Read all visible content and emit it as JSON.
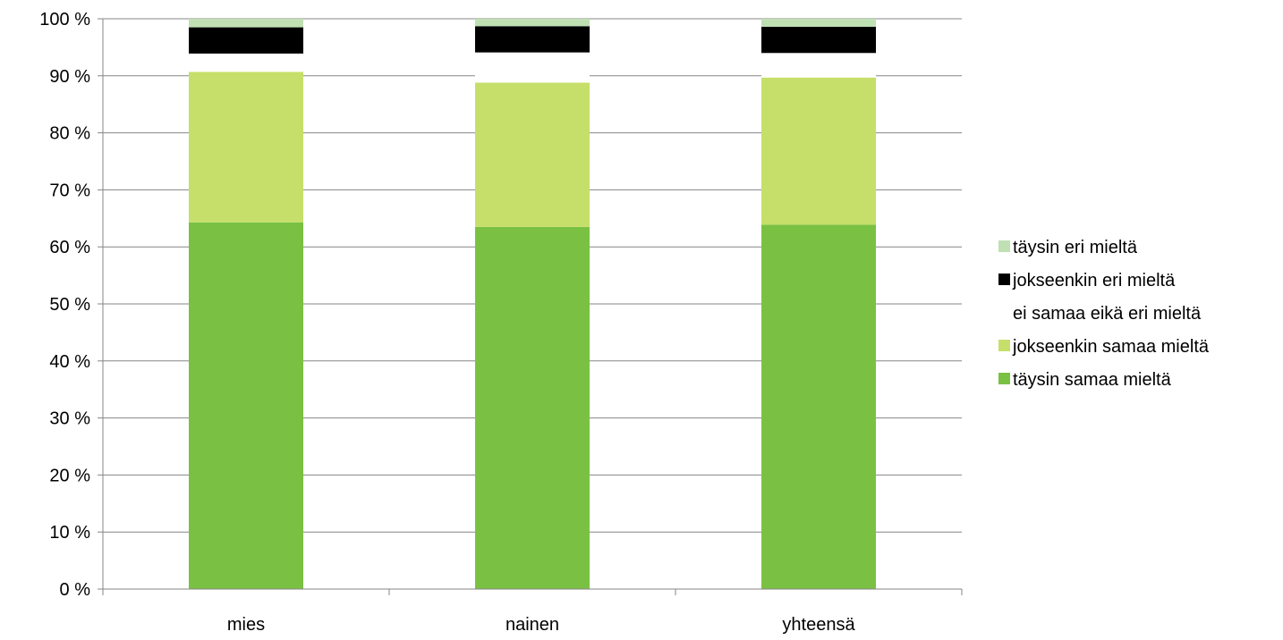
{
  "chart_data": {
    "type": "bar",
    "stacked": true,
    "percent": true,
    "categories": [
      "mies",
      "nainen",
      "yhteensä"
    ],
    "series": [
      {
        "name": "täysin samaa mieltä",
        "color": "#7ac143",
        "values": [
          64.3,
          63.5,
          63.9
        ]
      },
      {
        "name": "jokseenkin samaa mieltä",
        "color": "#c6df6a",
        "values": [
          26.4,
          25.3,
          25.8
        ]
      },
      {
        "name": "ei samaa eikä eri mieltä",
        "color": "#ffffff",
        "values": [
          3.2,
          5.3,
          4.3
        ]
      },
      {
        "name": "jokseenkin eri mieltä",
        "color": "#000000",
        "values": [
          4.6,
          4.6,
          4.6
        ]
      },
      {
        "name": "täysin eri mieltä",
        "color": "#bfe0b3",
        "values": [
          1.5,
          1.3,
          1.4
        ]
      }
    ],
    "yticks": [
      "0 %",
      "10 %",
      "20 %",
      "30 %",
      "40 %",
      "50 %",
      "60 %",
      "70 %",
      "80 %",
      "90 %",
      "100 %"
    ],
    "ylim": [
      0,
      100
    ],
    "grid": true,
    "legend_position": "right",
    "legend_order": [
      "täysin eri mieltä",
      "jokseenkin eri mieltä",
      "ei samaa eikä eri mieltä",
      "jokseenkin samaa mieltä",
      "täysin samaa mieltä"
    ]
  }
}
